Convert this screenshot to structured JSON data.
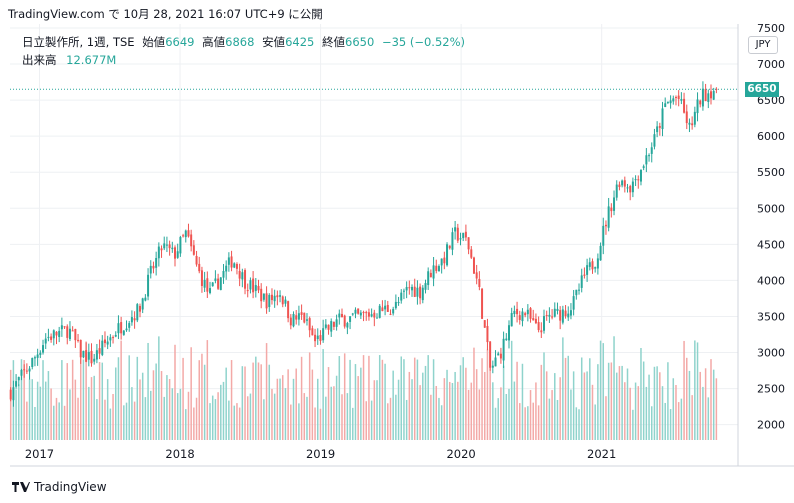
{
  "header": {
    "source_line": "TradingView.com で 10月 28, 2021 16:07 UTC+9 に公開"
  },
  "legend": {
    "symbol": "日立製作所, 1週, TSE",
    "open_label": "始値",
    "open": "6649",
    "high_label": "高値",
    "high": "6868",
    "low_label": "安値",
    "low": "6425",
    "close_label": "終値",
    "close": "6650",
    "change": "−35 (−0.52%)",
    "volume_label": "出来高",
    "volume": "12.677M"
  },
  "currency": "JPY",
  "last_price_tag": "6650",
  "footer": {
    "brand": "TradingView"
  },
  "colors": {
    "up": "#26a69a",
    "down": "#ef5350",
    "volume_up": "#8fd3cc",
    "volume_down": "#f3a9a7",
    "grid": "#eef0f3"
  },
  "chart_data": {
    "type": "candlestick",
    "interval": "weekly",
    "y_axis": {
      "ticks": [
        2000,
        2500,
        3000,
        3500,
        4000,
        4500,
        5000,
        5500,
        6000,
        6500,
        7000,
        7500
      ],
      "side": "right"
    },
    "x_axis": {
      "ticks": [
        "2017",
        "2018",
        "2019",
        "2020",
        "2021"
      ]
    },
    "grid": true,
    "last_close": 6650,
    "approx_close_path": [
      [
        "2016-10",
        2450
      ],
      [
        "2016-12",
        2900
      ],
      [
        "2017-01",
        3200
      ],
      [
        "2017-03",
        3320
      ],
      [
        "2017-04",
        3000
      ],
      [
        "2017-05",
        2900
      ],
      [
        "2017-07",
        3300
      ],
      [
        "2017-09",
        3600
      ],
      [
        "2017-10",
        4100
      ],
      [
        "2017-11",
        4480
      ],
      [
        "2017-12",
        4350
      ],
      [
        "2018-01",
        4650
      ],
      [
        "2018-02",
        4150
      ],
      [
        "2018-03",
        3800
      ],
      [
        "2018-04",
        4050
      ],
      [
        "2018-05",
        4300
      ],
      [
        "2018-06",
        4000
      ],
      [
        "2018-08",
        3700
      ],
      [
        "2018-09",
        3850
      ],
      [
        "2018-10",
        3450
      ],
      [
        "2018-11",
        3500
      ],
      [
        "2018-12",
        3150
      ],
      [
        "2019-01",
        3300
      ],
      [
        "2019-02",
        3450
      ],
      [
        "2019-04",
        3500
      ],
      [
        "2019-05",
        3550
      ],
      [
        "2019-07",
        3650
      ],
      [
        "2019-08",
        3900
      ],
      [
        "2019-09",
        3850
      ],
      [
        "2019-10",
        4150
      ],
      [
        "2019-11",
        4300
      ],
      [
        "2019-12",
        4650
      ],
      [
        "2020-01",
        4550
      ],
      [
        "2020-02",
        3900
      ],
      [
        "2020-03",
        2750
      ],
      [
        "2020-04",
        3050
      ],
      [
        "2020-05",
        3550
      ],
      [
        "2020-06",
        3550
      ],
      [
        "2020-07",
        3300
      ],
      [
        "2020-08",
        3500
      ],
      [
        "2020-09",
        3550
      ],
      [
        "2020-10",
        3650
      ],
      [
        "2020-11",
        4050
      ],
      [
        "2020-12",
        4300
      ],
      [
        "2021-01",
        4900
      ],
      [
        "2021-02",
        5400
      ],
      [
        "2021-03",
        5300
      ],
      [
        "2021-04",
        5600
      ],
      [
        "2021-05",
        5950
      ],
      [
        "2021-06",
        6450
      ],
      [
        "2021-07",
        6550
      ],
      [
        "2021-08",
        6100
      ],
      [
        "2021-09",
        6550
      ],
      [
        "2021-10",
        6650
      ]
    ],
    "volume": {
      "unit": "M",
      "last": 12.677
    }
  }
}
